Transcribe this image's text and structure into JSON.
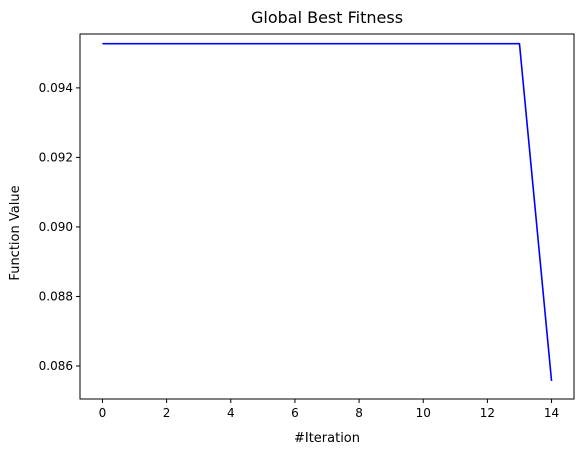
{
  "chart_data": {
    "type": "line",
    "title": "Global Best Fitness",
    "xlabel": "#Iteration",
    "ylabel": "Function Value",
    "xlim": [
      -0.7,
      14.7
    ],
    "ylim": [
      0.08505,
      0.09555
    ],
    "grid": false,
    "x_ticks": [
      0,
      2,
      4,
      6,
      8,
      10,
      12,
      14
    ],
    "x_tick_labels": [
      "0",
      "2",
      "4",
      "6",
      "8",
      "10",
      "12",
      "14"
    ],
    "y_ticks": [
      0.086,
      0.088,
      0.09,
      0.092,
      0.094
    ],
    "y_tick_labels": [
      "0.086",
      "0.088",
      "0.090",
      "0.092",
      "0.094"
    ],
    "series": [
      {
        "color": "#0000ff",
        "x": [
          0,
          1,
          2,
          3,
          4,
          5,
          6,
          7,
          8,
          9,
          10,
          11,
          12,
          13,
          14
        ],
        "y": [
          0.09527,
          0.09527,
          0.09527,
          0.09527,
          0.09527,
          0.09527,
          0.09527,
          0.09527,
          0.09527,
          0.09527,
          0.09527,
          0.09527,
          0.09527,
          0.09527,
          0.08557
        ]
      }
    ]
  }
}
